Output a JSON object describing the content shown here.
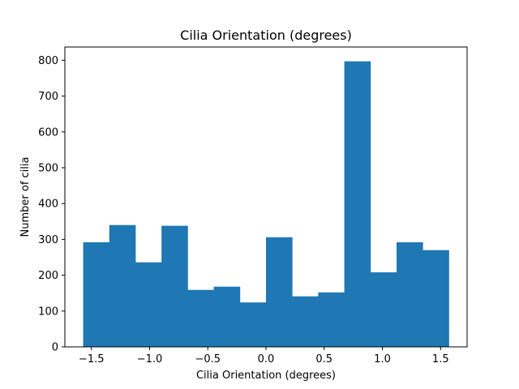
{
  "chart_data": {
    "type": "bar",
    "title": "Cilia Orientation (degrees)",
    "xlabel": "Cilia Orientation (degrees)",
    "ylabel": "Number of cilia",
    "bin_edges": [
      -1.5708,
      -1.3464,
      -1.122,
      -0.8976,
      -0.6732,
      -0.4488,
      -0.2244,
      0.0,
      0.2244,
      0.4488,
      0.6732,
      0.8976,
      1.122,
      1.3464,
      1.5708
    ],
    "values": [
      292,
      340,
      236,
      338,
      159,
      168,
      124,
      306,
      141,
      152,
      797,
      208,
      292,
      270
    ],
    "xlim": [
      -1.728,
      1.728
    ],
    "ylim": [
      0,
      837
    ],
    "xticks": [
      -1.5,
      -1.0,
      -0.5,
      0.0,
      0.5,
      1.0,
      1.5
    ],
    "xtick_labels": [
      "−1.5",
      "−1.0",
      "−0.5",
      "0.0",
      "0.5",
      "1.0",
      "1.5"
    ],
    "yticks": [
      0,
      100,
      200,
      300,
      400,
      500,
      600,
      700,
      800
    ],
    "ytick_labels": [
      "0",
      "100",
      "200",
      "300",
      "400",
      "500",
      "600",
      "700",
      "800"
    ],
    "bar_color": "#1f77b4",
    "grid": false,
    "legend": "none"
  }
}
